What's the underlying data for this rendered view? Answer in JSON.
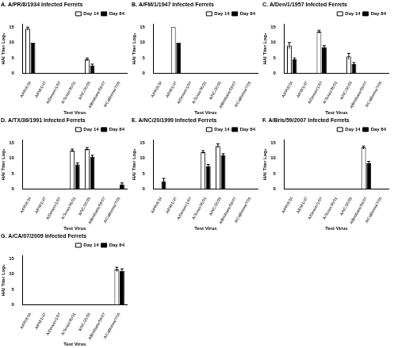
{
  "chart_data": [
    {
      "type": "bar",
      "panel_label": "A.",
      "title": "A/PR/8/1934 Infected Ferrets",
      "x_label": "Test Virus",
      "y_label": "HAI Titer Log₂",
      "categories": [
        "A/PR/8/34",
        "A/FM/1/47",
        "A/Denver/1/57",
        "A/Texas/36/91",
        "A/NC/20/99",
        "A/Brisbane/59/07",
        "A/California/7/09"
      ],
      "series": [
        {
          "name": "Day 14",
          "color": "#ffffff",
          "values": [
            14.5,
            0,
            0,
            0,
            4.5,
            0,
            0
          ],
          "errors": [
            0.5,
            0,
            0,
            0,
            0.5,
            0,
            0
          ]
        },
        {
          "name": "Day 84",
          "color": "#000000",
          "values": [
            10,
            0,
            0,
            0,
            2.5,
            0,
            0
          ],
          "errors": [
            0,
            0,
            0,
            0,
            0.5,
            0,
            0
          ]
        }
      ],
      "ylim": [
        0,
        16
      ],
      "yticks": [
        0,
        5,
        10,
        15
      ],
      "grid": false,
      "legend": "top-right"
    },
    {
      "type": "bar",
      "panel_label": "B.",
      "title": "A/FM/1/1947 Infected Ferrets",
      "x_label": "Test Virus",
      "y_label": "HAI Titer Log₂",
      "categories": [
        "A/PR/8/34",
        "A/FM/1/47",
        "A/Denver/1/57",
        "A/Texas/36/91",
        "A/NC/20/99",
        "A/Brisbane/59/07",
        "A/California/7/09"
      ],
      "series": [
        {
          "name": "Day 14",
          "color": "#ffffff",
          "values": [
            0,
            15,
            0,
            0,
            0,
            0,
            0
          ],
          "errors": [
            0,
            0,
            0,
            0,
            0,
            0,
            0
          ]
        },
        {
          "name": "Day 84",
          "color": "#000000",
          "values": [
            0,
            10,
            0,
            0,
            0,
            0,
            0
          ],
          "errors": [
            0,
            0,
            0,
            0,
            0,
            0,
            0
          ]
        }
      ],
      "ylim": [
        0,
        16
      ],
      "yticks": [
        0,
        5,
        10,
        15
      ],
      "grid": false,
      "legend": "top-right"
    },
    {
      "type": "bar",
      "panel_label": "C.",
      "title": "A/Den/1/1957 Infected Ferrets",
      "x_label": "Test Virus",
      "y_label": "HAI Titer Log₂",
      "categories": [
        "A/PR/8/34",
        "A/FM/1/47",
        "A/Denver/1/57",
        "A/Texas/36/91",
        "A/NC/20/99",
        "A/Brisbane/59/07",
        "A/California/7/09"
      ],
      "series": [
        {
          "name": "Day 14",
          "color": "#ffffff",
          "values": [
            9,
            0,
            13.5,
            0,
            5.5,
            0,
            0
          ],
          "errors": [
            1,
            0,
            0.5,
            0,
            1,
            0,
            0
          ]
        },
        {
          "name": "Day 84",
          "color": "#000000",
          "values": [
            4.5,
            0,
            8.5,
            0,
            3,
            0,
            0
          ],
          "errors": [
            0.5,
            0,
            0.5,
            0,
            0.5,
            0,
            0
          ]
        }
      ],
      "ylim": [
        0,
        16
      ],
      "yticks": [
        0,
        5,
        10,
        15
      ],
      "grid": false,
      "legend": "top-right"
    },
    {
      "type": "bar",
      "panel_label": "D.",
      "title": "A/TX/36/1991 Infected Ferrets",
      "x_label": "Test Virus",
      "y_label": "HAI Titer Log₂",
      "categories": [
        "A/PR/8/34",
        "A/FM/1/47",
        "A/Denver/1/57",
        "A/Texas/36/91",
        "A/NC/20/99",
        "A/Brisbane/59/07",
        "A/California/7/09"
      ],
      "series": [
        {
          "name": "Day 14",
          "color": "#ffffff",
          "values": [
            0,
            0,
            0,
            12.5,
            13,
            0,
            0
          ],
          "errors": [
            0,
            0,
            0,
            0.5,
            0.5,
            0,
            0
          ]
        },
        {
          "name": "Day 84",
          "color": "#000000",
          "values": [
            0,
            0,
            0,
            8,
            10.5,
            0,
            1.5
          ],
          "errors": [
            0,
            0,
            0,
            0.5,
            0.5,
            0,
            0.5
          ]
        }
      ],
      "ylim": [
        0,
        16
      ],
      "yticks": [
        0,
        5,
        10,
        15
      ],
      "grid": false,
      "legend": "top-right"
    },
    {
      "type": "bar",
      "panel_label": "E.",
      "title": "A/NC/20/1999 Infected Ferrets",
      "x_label": "Test Virus",
      "y_label": "HAI Titer Log₂",
      "categories": [
        "A/PR/8/34",
        "A/FM/1/47",
        "A/Denver/1/57",
        "A/Texas/36/91",
        "A/NC/20/99",
        "A/Brisbane/59/07",
        "A/California/7/09"
      ],
      "series": [
        {
          "name": "Day 14",
          "color": "#ffffff",
          "values": [
            0,
            0,
            0,
            12,
            14,
            0,
            0
          ],
          "errors": [
            0,
            0,
            0,
            0.5,
            0.7,
            0,
            0
          ]
        },
        {
          "name": "Day 84",
          "color": "#000000",
          "values": [
            2.5,
            0,
            0,
            7.5,
            11,
            0,
            0
          ],
          "errors": [
            1,
            0,
            0,
            0.5,
            0.5,
            0,
            0
          ]
        }
      ],
      "ylim": [
        0,
        16
      ],
      "yticks": [
        0,
        5,
        10,
        15
      ],
      "grid": false,
      "legend": "top-right"
    },
    {
      "type": "bar",
      "panel_label": "F.",
      "title": "A/Bris/59/2007 Infected Ferrets",
      "x_label": "Test Virus",
      "y_label": "HAI Titer Log₂",
      "categories": [
        "A/PR/8/34",
        "A/FM/1/47",
        "A/Denver/1/57",
        "A/Texas/36/91",
        "A/NC/20/99",
        "A/Brisbane/59/07",
        "A/California/7/09"
      ],
      "series": [
        {
          "name": "Day 14",
          "color": "#ffffff",
          "values": [
            0,
            0,
            0,
            0,
            0,
            13.5,
            0
          ],
          "errors": [
            0,
            0,
            0,
            0,
            0,
            0.5,
            0
          ]
        },
        {
          "name": "Day 84",
          "color": "#000000",
          "values": [
            0,
            0,
            0,
            0,
            0,
            8.5,
            0
          ],
          "errors": [
            0,
            0,
            0,
            0,
            0,
            0.5,
            0
          ]
        }
      ],
      "ylim": [
        0,
        16
      ],
      "yticks": [
        0,
        5,
        10,
        15
      ],
      "grid": false,
      "legend": "top-right"
    },
    {
      "type": "bar",
      "panel_label": "G.",
      "title": "A/CA/07/2009 Infected Ferrets",
      "x_label": "Test Virus",
      "y_label": "HAI Titer Log₂",
      "categories": [
        "A/PR/8/34",
        "A/FM/1/47",
        "A/Denver/1/57",
        "A/Texas/36/91",
        "A/NC/20/99",
        "A/Brisbane/59/07",
        "A/California/7/09"
      ],
      "series": [
        {
          "name": "Day 14",
          "color": "#ffffff",
          "values": [
            0,
            0,
            0,
            0,
            0,
            0,
            11.5
          ],
          "errors": [
            0,
            0,
            0,
            0,
            0,
            0,
            0.7
          ]
        },
        {
          "name": "Day 84",
          "color": "#000000",
          "values": [
            0,
            0,
            0,
            0,
            0,
            0,
            11
          ],
          "errors": [
            0,
            0,
            0,
            0,
            0,
            0,
            0.7
          ]
        }
      ],
      "ylim": [
        0,
        16
      ],
      "yticks": [
        0,
        5,
        10,
        15
      ],
      "grid": false,
      "legend": "top-right"
    }
  ]
}
